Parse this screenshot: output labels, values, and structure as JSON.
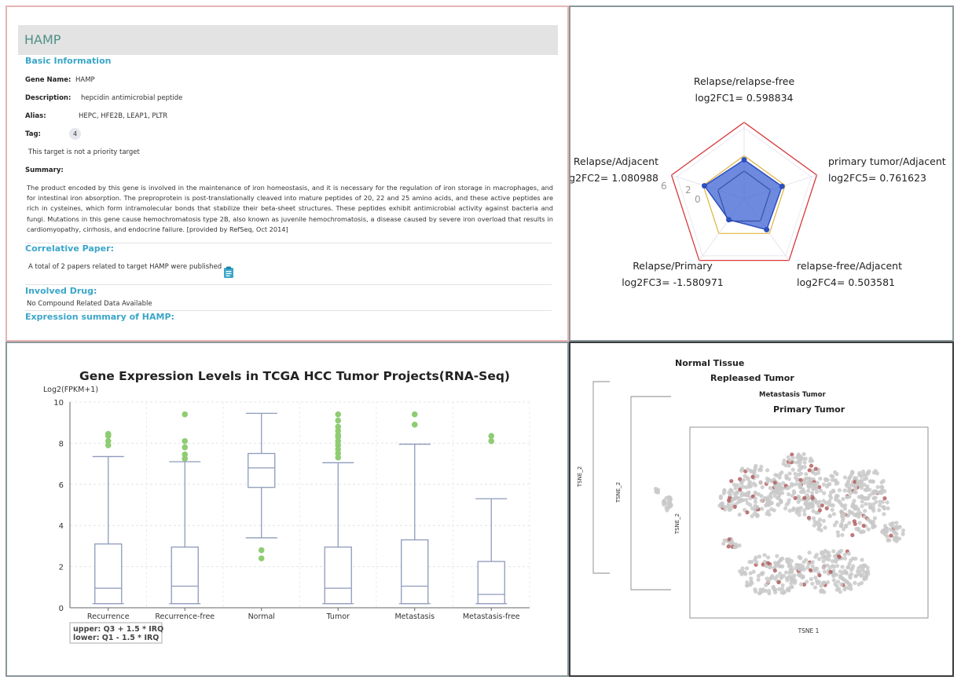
{
  "info": {
    "gene_title": "HAMP",
    "basic_info_title": "Basic Information",
    "gene_name_label": "Gene Name:",
    "gene_name": "HAMP",
    "description_label": "Description:",
    "description": "hepcidin antimicrobial peptide",
    "alias_label": "Alias:",
    "alias": "HEPC, HFE2B, LEAP1, PLTR",
    "tag_label": "Tag:",
    "tag_value": "4",
    "priority_text": "This target is not a priority target",
    "summary_label": "Summary:",
    "summary": "The product encoded by this gene is involved in the maintenance of iron homeostasis, and it is necessary for the regulation of iron storage in macrophages, and for intestinal iron absorption. The preproprotein is post-translationally cleaved into mature peptides of 20, 22 and 25 amino acids, and these active peptides are rich in cysteines, which form intramolecular bonds that stabilize their beta-sheet structures. These peptides exhibit antimicrobial activity against bacteria and fungi. Mutations in this gene cause hemochromatosis type 2B, also known as juvenile hemochromatosis, a disease caused by severe iron overload that results in cardiomyopathy, cirrhosis, and endocrine failure. [provided by RefSeq, Oct 2014]",
    "paper_title": "Correlative Paper:",
    "paper_text": "A total of 2 papers related to target HAMP were published",
    "drug_title": "Involved Drug:",
    "drug_text": "No Compound Related Data Available",
    "expression_title": "Expression summary of HAMP:",
    "clip_icon": "clipboard-icon",
    "accent_color": "#3aa6c8"
  },
  "chart_data": [
    {
      "type": "radar",
      "axes": [
        {
          "name": "Relapse/relapse-free",
          "metric": "log2FC1=",
          "value": 0.598834,
          "value_text": "0.598834"
        },
        {
          "name": "primary tumor/Adjacent",
          "metric": "log2FC5=",
          "value": 0.761623,
          "value_text": "0.761623"
        },
        {
          "name": "relapse-free/Adjacent",
          "metric": "log2FC4=",
          "value": 0.503581,
          "value_text": "0.503581"
        },
        {
          "name": "Relapse/Primary",
          "metric": "log2FC3=",
          "value": -1.580971,
          "value_text": "-1.580971"
        },
        {
          "name": "Relapse/Adjacent",
          "metric": "log2FC2=",
          "value": 1.080988,
          "value_text": "1.080988"
        }
      ],
      "ticks": [
        "6",
        "2",
        "0"
      ],
      "range": [
        -6,
        6
      ],
      "colors": {
        "outer": "#d73a3a",
        "mid": "#e0b23c",
        "inner": "#222222",
        "fill": "#3d63d4"
      }
    },
    {
      "type": "boxplot",
      "title": "Gene Expression Levels in TCGA HCC Tumor Projects(RNA-Seq)",
      "ylabel": "Log2(FPKM+1)",
      "ylim": [
        0,
        10
      ],
      "yticks": [
        0,
        2,
        4,
        6,
        8,
        10
      ],
      "categories": [
        "Recurrence",
        "Recurrence-free",
        "Normal",
        "Tumor",
        "Metastasis",
        "Metastasis-free"
      ],
      "boxes": [
        {
          "min": 0.2,
          "q1": 0.2,
          "median": 0.95,
          "q3": 3.1,
          "max": 7.35,
          "outliers": [
            7.9,
            8.1,
            8.35,
            8.45
          ]
        },
        {
          "min": 0.2,
          "q1": 0.2,
          "median": 1.05,
          "q3": 2.95,
          "max": 7.1,
          "outliers": [
            7.25,
            7.45,
            7.8,
            8.1,
            9.4
          ]
        },
        {
          "min": 3.4,
          "q1": 5.85,
          "median": 6.8,
          "q3": 7.5,
          "max": 9.45,
          "outliers": [
            2.8,
            2.4
          ]
        },
        {
          "min": 0.2,
          "q1": 0.2,
          "median": 0.95,
          "q3": 2.95,
          "max": 7.05,
          "outliers": [
            7.3,
            7.5,
            7.7,
            7.9,
            8.1,
            8.3,
            8.4,
            8.6,
            8.8,
            9.1,
            9.4
          ]
        },
        {
          "min": 0.2,
          "q1": 0.2,
          "median": 1.05,
          "q3": 3.3,
          "max": 7.95,
          "outliers": [
            8.9,
            9.4
          ]
        },
        {
          "min": 0.2,
          "q1": 0.2,
          "median": 0.65,
          "q3": 2.25,
          "max": 5.3,
          "outliers": [
            8.1,
            8.35
          ]
        }
      ],
      "legend": [
        "upper: Q3 + 1.5 * IRQ",
        "lower: Q1 - 1.5 * IRQ"
      ],
      "colors": {
        "box": "#8e9abb",
        "outlier": "#8fcc72"
      }
    },
    {
      "type": "scatter",
      "layers": [
        "Normal Tissue",
        "Repleased Tumor",
        "Metastasis Tumor",
        "Primary Tumor"
      ],
      "ylabel": "TSNE_2",
      "xlabel": "TSNE 1",
      "colors": {
        "point": "#c9c9c9",
        "highlight": "#b46060"
      }
    }
  ]
}
